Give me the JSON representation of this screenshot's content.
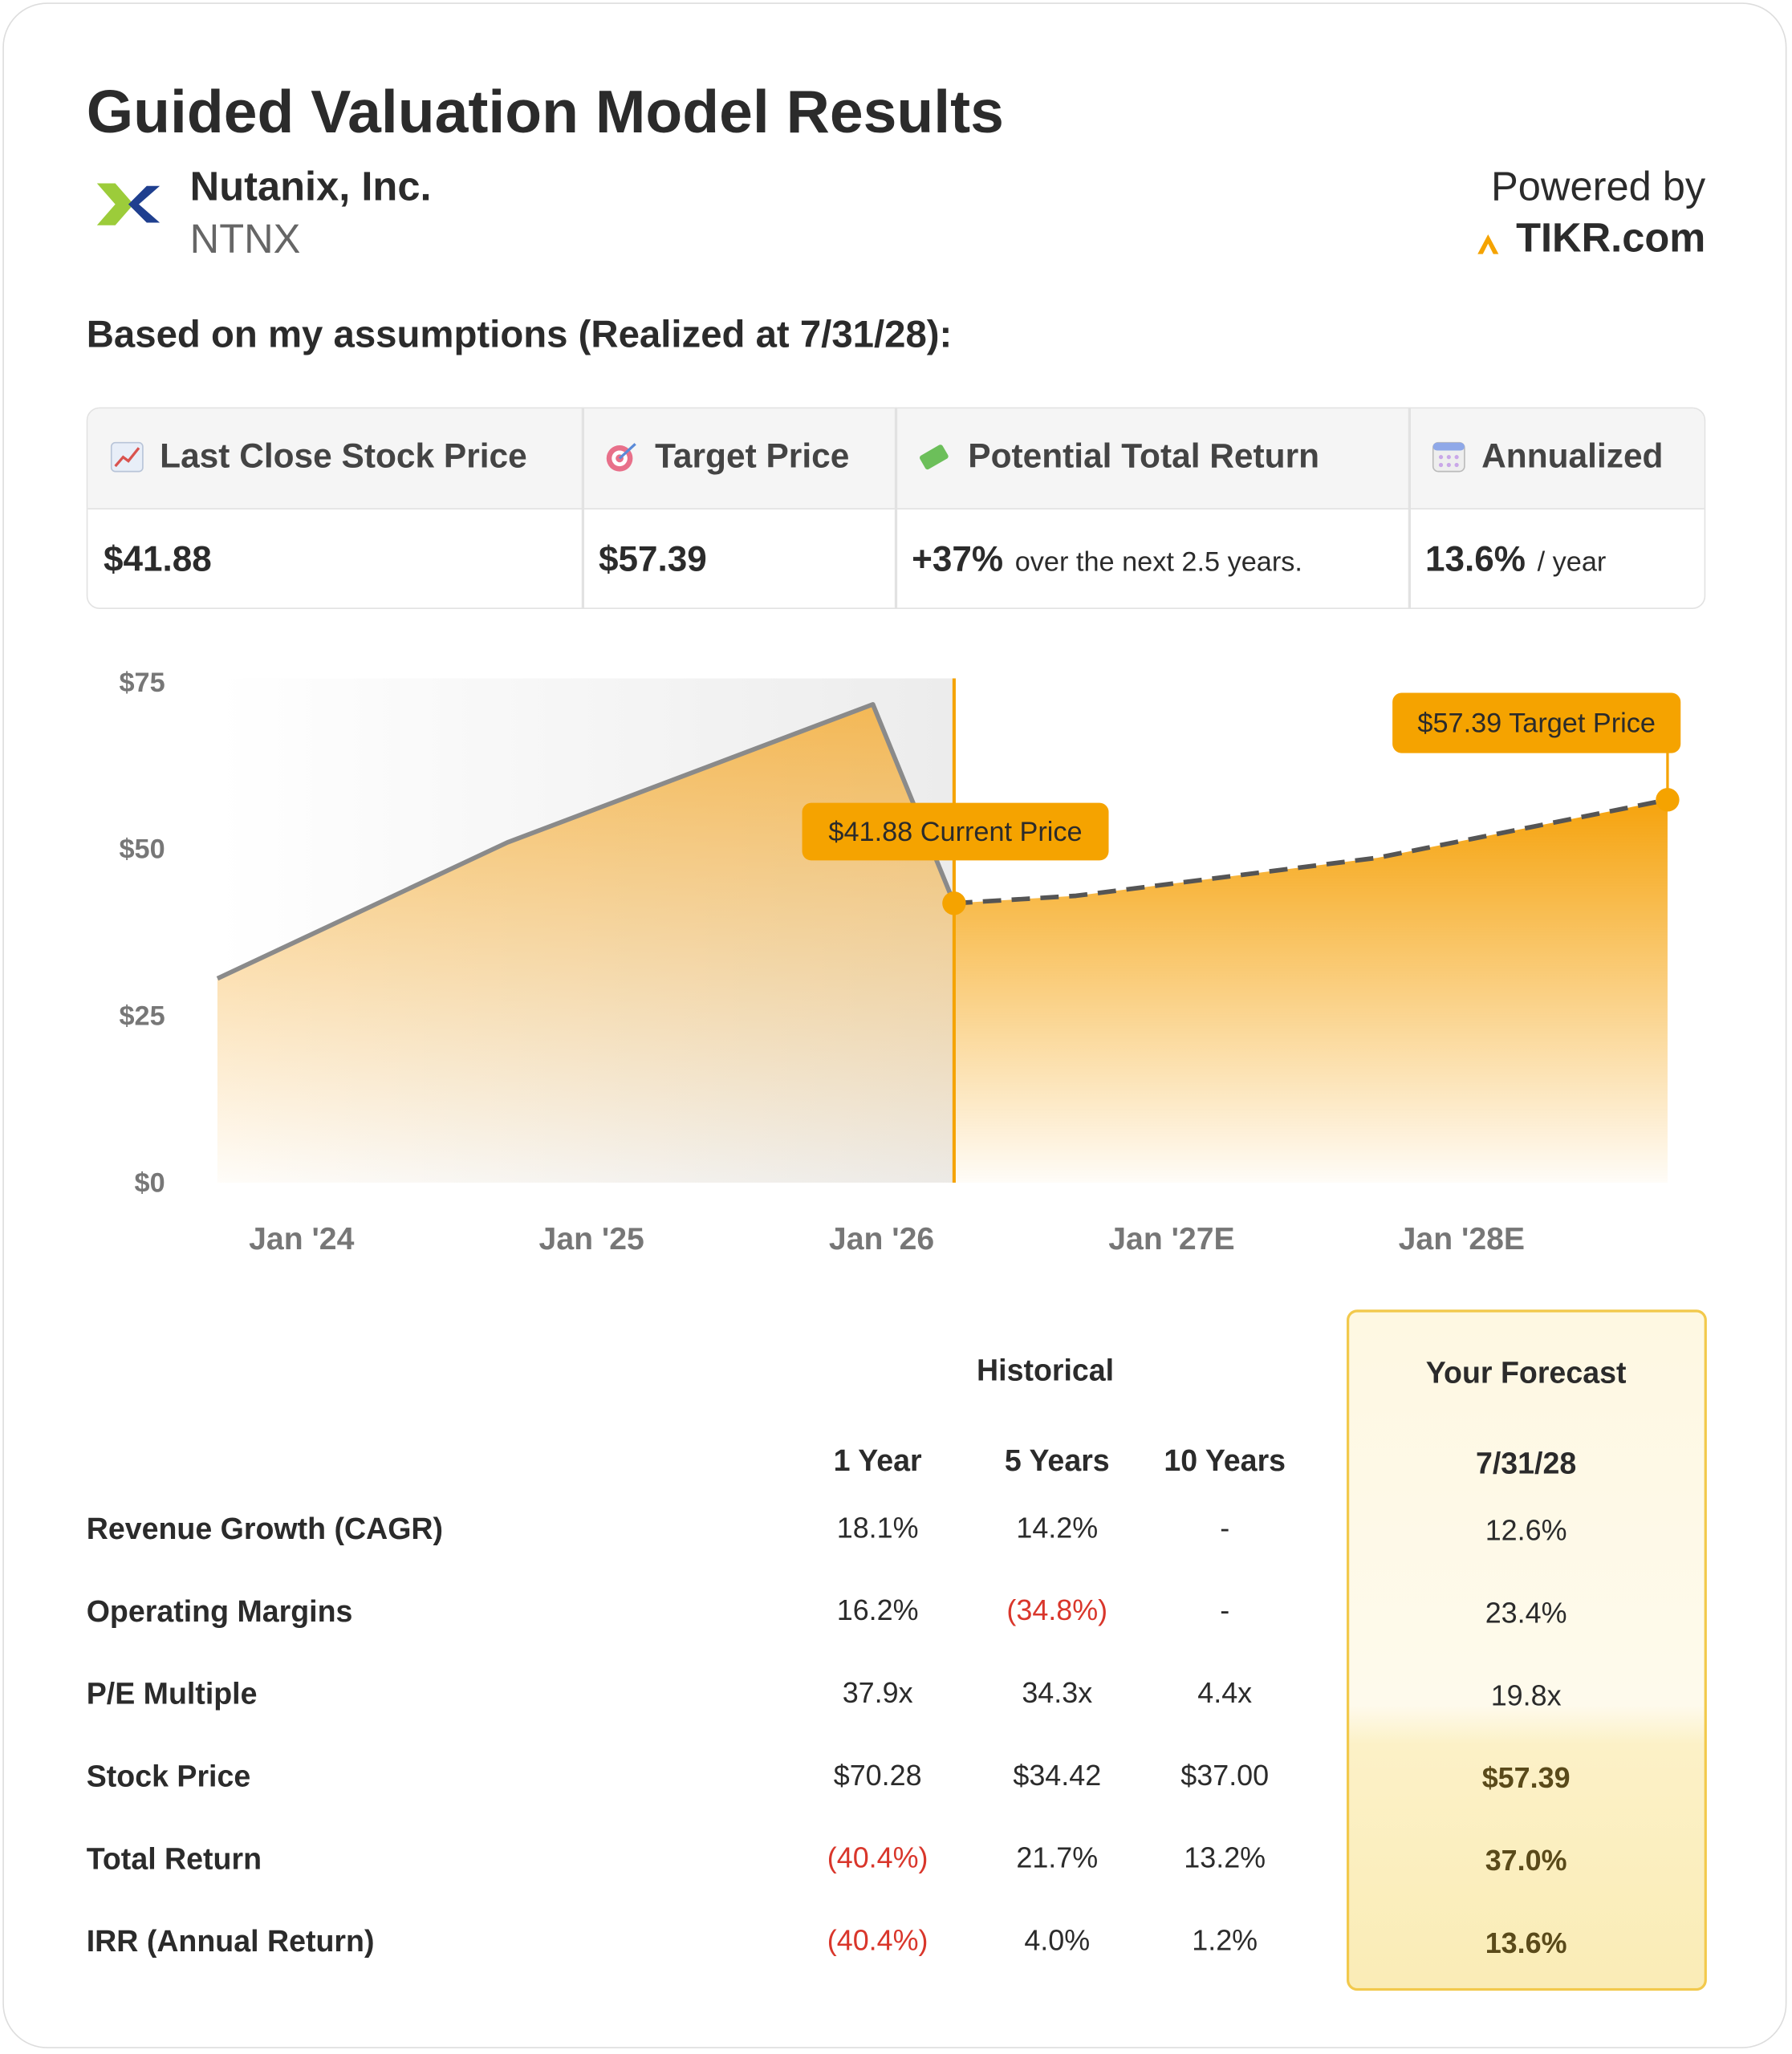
{
  "header": {
    "title": "Guided Valuation Model Results",
    "company": "Nutanix, Inc.",
    "ticker": "NTNX",
    "powered_by": "Powered by",
    "brand": "TIKR.com"
  },
  "assumptions": "Based on my assumptions (Realized at 7/31/28):",
  "summary": {
    "headers": [
      "Last Close Stock Price",
      "Target Price",
      "Potential Total Return",
      "Annualized"
    ],
    "values": [
      {
        "main": "$41.88"
      },
      {
        "main": "$57.39"
      },
      {
        "main": "+37%",
        "note": "over the next 2.5 years."
      },
      {
        "main": "13.6%",
        "note": "/ year"
      }
    ]
  },
  "chart_data": {
    "type": "area",
    "series": [
      {
        "color": "#f5a623",
        "line_color": "#8a8a8a",
        "x": [
          2023.71,
          2024.71,
          2025.97,
          2026.25
        ],
        "values": [
          30.6,
          51.0,
          71.7,
          41.88
        ]
      },
      {
        "color": "#f59e00",
        "line_color": "#555555",
        "dashed": true,
        "x": [
          2026.25,
          2026.67,
          2027.71,
          2028.71
        ],
        "values": [
          41.88,
          43.0,
          48.7,
          57.39
        ]
      }
    ],
    "annotations": [
      "$41.88 Current Price",
      "$57.39 Target Price"
    ],
    "xlim": [
      2023.71,
      2028.71
    ],
    "xticks": [
      {
        "value": 2024,
        "label": "Jan '24"
      },
      {
        "value": 2025,
        "label": "Jan '25"
      },
      {
        "value": 2026,
        "label": "Jan '26"
      },
      {
        "value": 2027,
        "label": "Jan '27E"
      },
      {
        "value": 2028,
        "label": "Jan '28E"
      }
    ],
    "ylim": [
      0,
      75
    ],
    "yticks": [
      {
        "value": 0,
        "label": "$0"
      },
      {
        "value": 25,
        "label": "$25"
      },
      {
        "value": 50,
        "label": "$50"
      },
      {
        "value": 75,
        "label": "$75"
      }
    ]
  },
  "metrics": {
    "historical_header": "Historical",
    "forecast_header": "Your Forecast",
    "columns": [
      "1 Year",
      "5 Years",
      "10 Years",
      "7/31/28"
    ],
    "rows": [
      {
        "label": "Revenue Growth (CAGR)",
        "values": [
          "18.1%",
          "14.2%",
          "-",
          "12.6%"
        ]
      },
      {
        "label": "Operating Margins",
        "values": [
          "16.2%",
          "(34.8%)",
          "-",
          "23.4%"
        ]
      },
      {
        "label": "P/E Multiple",
        "values": [
          "37.9x",
          "34.3x",
          "4.4x",
          "19.8x"
        ]
      },
      {
        "label": "Stock Price",
        "values": [
          "$70.28",
          "$34.42",
          "$37.00",
          "$57.39"
        ]
      },
      {
        "label": "Total Return",
        "values": [
          "(40.4%)",
          "21.7%",
          "13.2%",
          "37.0%"
        ]
      },
      {
        "label": "IRR (Annual Return)",
        "values": [
          "(40.4%)",
          "4.0%",
          "1.2%",
          "13.6%"
        ]
      }
    ]
  }
}
